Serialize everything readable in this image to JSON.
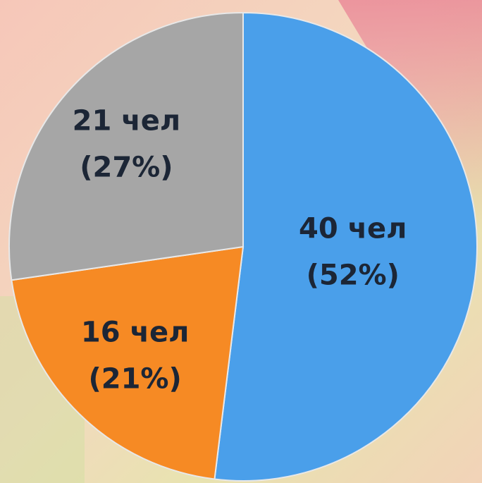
{
  "chart_data": {
    "type": "pie",
    "categories": [
      null,
      null,
      null
    ],
    "values": [
      40,
      16,
      21
    ],
    "value_labels": [
      "40 чел",
      "16 чел",
      "21 чел"
    ],
    "percents": [
      52,
      21,
      27
    ],
    "percent_labels": [
      "(52%)",
      "(21%)",
      "(27%)"
    ],
    "colors": [
      "#4a9fea",
      "#f68a24",
      "#a6a6a6"
    ]
  }
}
